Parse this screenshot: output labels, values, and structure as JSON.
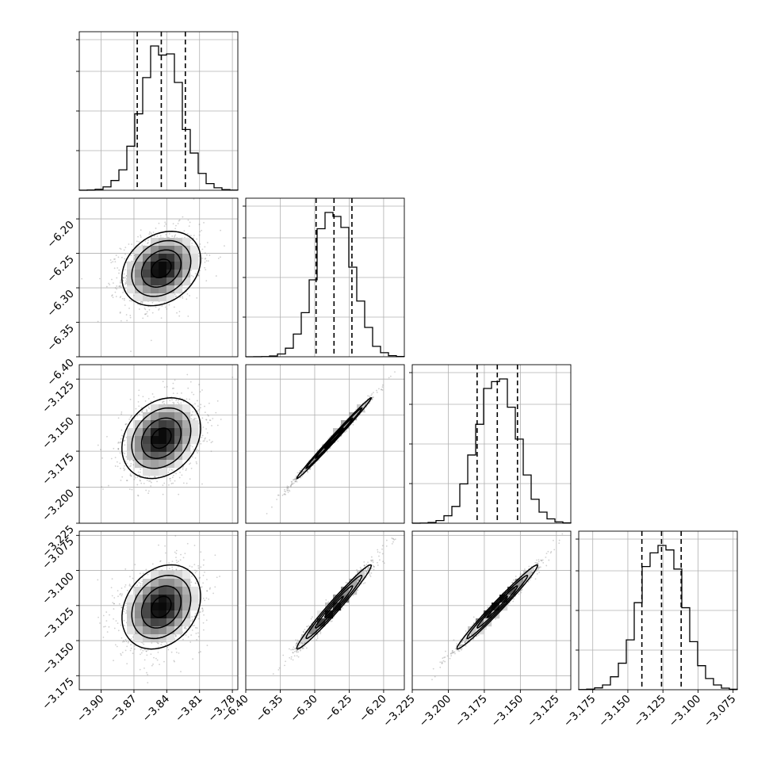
{
  "chart_data": {
    "type": "scatter",
    "title": "",
    "n_params": 4,
    "params": [
      {
        "index": 0,
        "center": -3.845,
        "sigma": 0.018,
        "range": [
          -3.92,
          -3.775
        ],
        "ticks": [
          -3.9,
          -3.87,
          -3.84,
          -3.81,
          -3.78
        ],
        "tick_labels": [
          "−3.90",
          "−3.87",
          "−3.84",
          "−3.81",
          "−3.78"
        ],
        "quantiles": [
          -3.867,
          -3.845,
          -3.823
        ]
      },
      {
        "index": 1,
        "center": -6.272,
        "sigma": 0.027,
        "range": [
          -6.4,
          -6.17
        ],
        "ticks": [
          -6.4,
          -6.35,
          -6.3,
          -6.25,
          -6.2
        ],
        "tick_labels": [
          "−6.40",
          "−6.35",
          "−6.30",
          "−6.25",
          "−6.20"
        ],
        "quantiles": [
          -6.298,
          -6.272,
          -6.246
        ]
      },
      {
        "index": 2,
        "center": -3.166,
        "sigma": 0.014,
        "range": [
          -3.225,
          -3.115
        ],
        "ticks": [
          -3.225,
          -3.2,
          -3.175,
          -3.15,
          -3.125
        ],
        "tick_labels": [
          "−3.225",
          "−3.200",
          "−3.175",
          "−3.150",
          "−3.125"
        ],
        "quantiles": [
          -3.18,
          -3.166,
          -3.152
        ]
      },
      {
        "index": 3,
        "center": -3.126,
        "sigma": 0.015,
        "range": [
          -3.185,
          -3.072
        ],
        "ticks": [
          -3.175,
          -3.15,
          -3.125,
          -3.1,
          -3.075
        ],
        "tick_labels": [
          "−3.175",
          "−3.150",
          "−3.125",
          "−3.100",
          "−3.075"
        ],
        "quantiles": [
          -3.14,
          -3.126,
          -3.112
        ]
      }
    ],
    "correlations": [
      [
        1.0,
        0.25,
        0.25,
        0.25
      ],
      [
        0.25,
        1.0,
        0.995,
        0.98
      ],
      [
        0.25,
        0.995,
        1.0,
        0.985
      ],
      [
        0.25,
        0.98,
        0.985,
        1.0
      ]
    ],
    "contour_levels_sigma": [
      0.5,
      1.0,
      1.5,
      2.0
    ],
    "grid": true,
    "colors": {
      "points": "#777777",
      "contour": "#000000",
      "hist": "#000000",
      "grid": "#b0b0b0"
    }
  }
}
